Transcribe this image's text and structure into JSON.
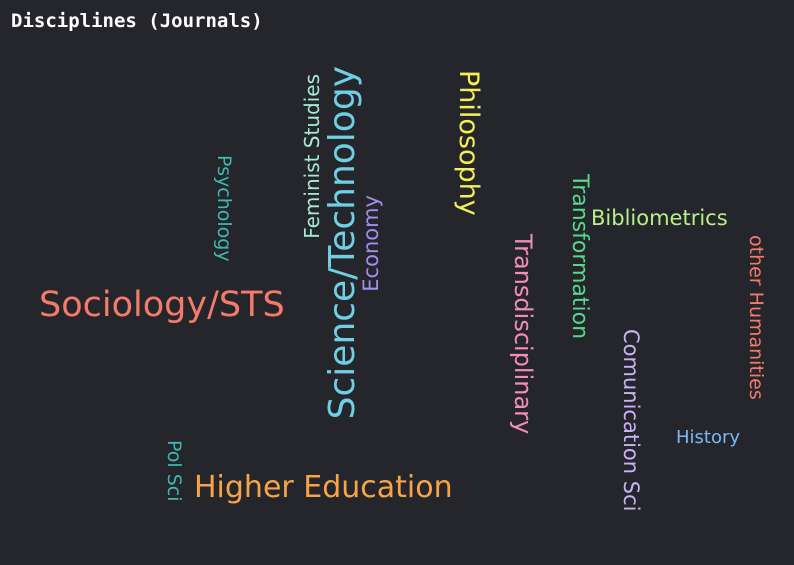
{
  "title": "Disciplines (Journals)",
  "words": [
    {
      "text": "Sociology/STS",
      "color": "#f47a6b",
      "orientation": "horizontal"
    },
    {
      "text": "Higher Education",
      "color": "#f6a34a",
      "orientation": "horizontal"
    },
    {
      "text": "Science/Technology",
      "color": "#6fd0e4",
      "orientation": "vertical-up"
    },
    {
      "text": "Feminist Studies",
      "color": "#a6ead4",
      "orientation": "vertical-up"
    },
    {
      "text": "Economy",
      "color": "#9f8ff0",
      "orientation": "vertical-up"
    },
    {
      "text": "Psychology",
      "color": "#3fb8b0",
      "orientation": "vertical-down"
    },
    {
      "text": "Pol Sci",
      "color": "#3fb8b0",
      "orientation": "vertical-down"
    },
    {
      "text": "Philosophy",
      "color": "#f5ee57",
      "orientation": "vertical-down"
    },
    {
      "text": "Transdisciplinary",
      "color": "#f28db6",
      "orientation": "vertical-down"
    },
    {
      "text": "Transformation",
      "color": "#56d88a",
      "orientation": "vertical-down"
    },
    {
      "text": "Bibliometrics",
      "color": "#b8ef8a",
      "orientation": "horizontal"
    },
    {
      "text": "Comunication Sci",
      "color": "#c9b3f5",
      "orientation": "vertical-down"
    },
    {
      "text": "other Humanities",
      "color": "#f47a6b",
      "orientation": "vertical-down"
    },
    {
      "text": "History",
      "color": "#7ab8f5",
      "orientation": "horizontal"
    }
  ]
}
